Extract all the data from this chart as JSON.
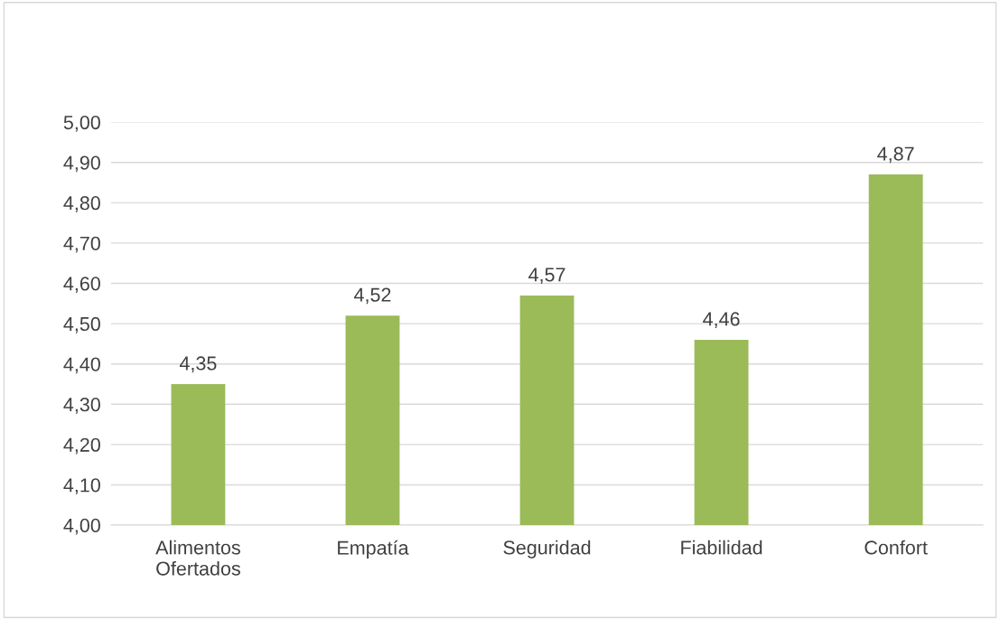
{
  "chart_data": {
    "type": "bar",
    "categories": [
      "Alimentos\nOfertados",
      "Empatía",
      "Seguridad",
      "Fiabilidad",
      "Confort"
    ],
    "values": [
      4.35,
      4.52,
      4.57,
      4.46,
      4.87
    ],
    "value_labels": [
      "4,35",
      "4,52",
      "4,57",
      "4,46",
      "4,87"
    ],
    "color": "#9bbb59",
    "ylim": [
      4.0,
      5.0
    ],
    "yticks": [
      {
        "value": 4.0,
        "label": "4,00"
      },
      {
        "value": 4.1,
        "label": "4,10"
      },
      {
        "value": 4.2,
        "label": "4,20"
      },
      {
        "value": 4.3,
        "label": "4,30"
      },
      {
        "value": 4.4,
        "label": "4,40"
      },
      {
        "value": 4.5,
        "label": "4,50"
      },
      {
        "value": 4.6,
        "label": "4,60"
      },
      {
        "value": 4.7,
        "label": "4,70"
      },
      {
        "value": 4.8,
        "label": "4,80"
      },
      {
        "value": 4.9,
        "label": "4,90"
      },
      {
        "value": 5.0,
        "label": "5,00"
      }
    ],
    "grid": "y",
    "legend": false
  }
}
